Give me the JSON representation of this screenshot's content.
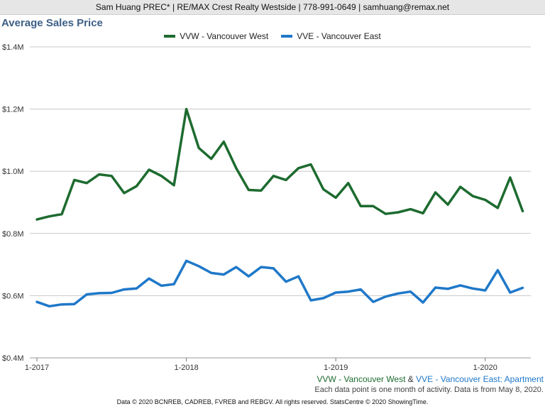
{
  "header": {
    "contact": "Sam Huang PREC* | RE/MAX Crest Realty Westside | 778-991-0649 | samhuang@remax.net"
  },
  "chart_data": {
    "type": "line",
    "title": "Average Sales Price",
    "x_ticks": [
      "1-2017",
      "1-2018",
      "1-2019",
      "1-2020"
    ],
    "y_ticks": [
      "$0.4M",
      "$0.6M",
      "$0.8M",
      "$1.0M",
      "$1.2M",
      "$1.4M"
    ],
    "ylim": [
      0.4,
      1.4
    ],
    "grid": true,
    "legend_position": "top-center",
    "series": [
      {
        "name": "VVW - Vancouver West",
        "color": "#1d6b2f",
        "values": [
          0.845,
          0.855,
          0.862,
          0.972,
          0.962,
          0.99,
          0.985,
          0.93,
          0.952,
          1.005,
          0.985,
          0.955,
          1.2,
          1.075,
          1.04,
          1.095,
          1.01,
          0.94,
          0.938,
          0.985,
          0.972,
          1.01,
          1.022,
          0.942,
          0.915,
          0.962,
          0.888,
          0.888,
          0.863,
          0.868,
          0.878,
          0.865,
          0.932,
          0.893,
          0.95,
          0.92,
          0.908,
          0.882,
          0.98,
          0.872
        ]
      },
      {
        "name": "VVE - Vancouver East",
        "color": "#1f78c8",
        "values": [
          0.58,
          0.566,
          0.572,
          0.573,
          0.604,
          0.608,
          0.609,
          0.62,
          0.623,
          0.655,
          0.632,
          0.637,
          0.712,
          0.695,
          0.673,
          0.668,
          0.692,
          0.662,
          0.692,
          0.688,
          0.645,
          0.662,
          0.585,
          0.592,
          0.61,
          0.613,
          0.62,
          0.58,
          0.597,
          0.607,
          0.613,
          0.578,
          0.626,
          0.622,
          0.633,
          0.623,
          0.617,
          0.682,
          0.61,
          0.625
        ]
      }
    ],
    "subtitle": {
      "part1": "VVW - Vancouver West",
      "part2": " & ",
      "part3": "VVE - Vancouver East",
      "part4": ": Apartment"
    },
    "note": "Each data point is one month of activity. Data is from May 8, 2020."
  },
  "footer": {
    "text": "Data © 2020 BCNREB, CADREB, FVREB and REBGV. All rights reserved. StatsCentre © 2020 ShowingTime."
  }
}
